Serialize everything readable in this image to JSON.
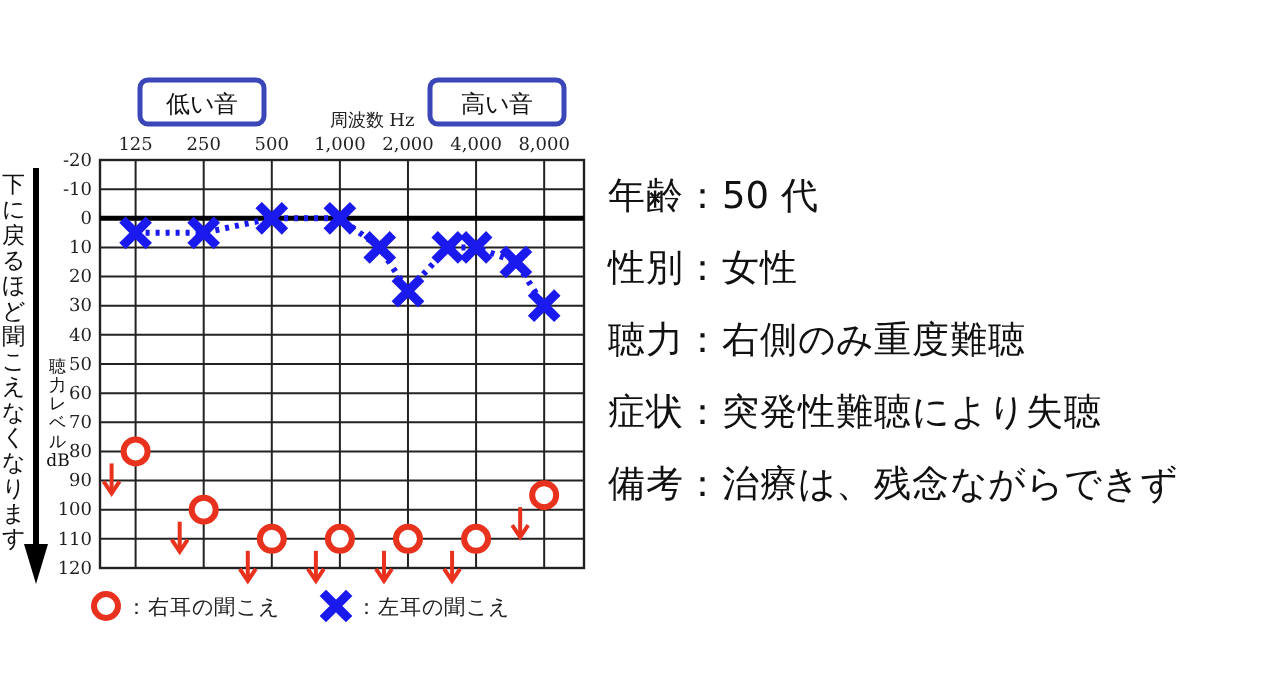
{
  "chart_data": [
    {
      "type": "line",
      "xlabel": "周波数 Hz",
      "ylabel": "聴力レベル dB",
      "log": "x",
      "xlim": [
        87,
        12000
      ],
      "ylim": [
        120,
        -20
      ],
      "xticks": [
        125,
        250,
        500,
        {
          "value": 1000,
          "label": "1,000"
        },
        {
          "value": 2000,
          "label": "2,000"
        },
        {
          "value": 4000,
          "label": "4,000"
        },
        {
          "value": 8000,
          "label": "8,000"
        }
      ],
      "yticks": [
        -20,
        -10,
        0,
        10,
        20,
        30,
        40,
        50,
        60,
        70,
        80,
        90,
        100,
        110,
        120
      ],
      "grid": true,
      "legend": "bottom",
      "ref_lines": [
        {
          "axis": "y",
          "value": 0,
          "color": "#000000"
        }
      ],
      "annotations": [
        "低い音",
        "高い音",
        "下に戻るほど聞こえなくなります"
      ],
      "series": [
        {
          "name": "：右耳の聞こえ",
          "type": "scatter",
          "marker": "circle",
          "color": "#e8321e",
          "x": [
            125,
            250,
            500,
            1000,
            2000,
            4000,
            8000
          ],
          "values": [
            80,
            100,
            110,
            110,
            110,
            110,
            95
          ]
        },
        {
          "name": "：左耳の聞こえ",
          "type": "line",
          "marker": "cross",
          "line_style": "dotted",
          "color": "#1a1aee",
          "x": [
            125,
            250,
            500,
            1000,
            1500,
            2000,
            3000,
            4000,
            6000,
            8000
          ],
          "values": [
            5,
            5,
            0,
            0,
            10,
            25,
            10,
            10,
            15,
            30
          ]
        }
      ]
    },
    {
      "type": "other",
      "annotations": [
        "年齢：50 代",
        "性別：女性",
        "聴力：右側のみ重度難聴",
        "症状：突発性難聴により失聴",
        "備考：治療は、残念ながらできず"
      ]
    }
  ]
}
